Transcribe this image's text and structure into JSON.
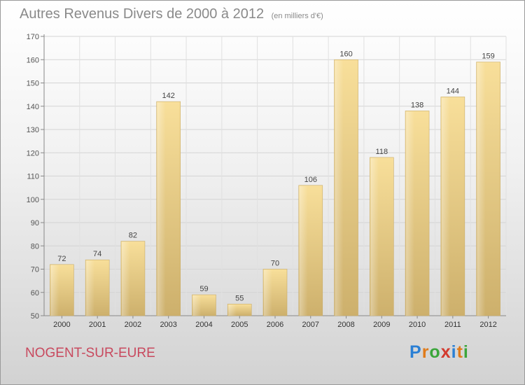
{
  "header": {
    "title": "Autres Revenus Divers de 2000 à 2012",
    "unit": "(en milliers d'€)"
  },
  "footer": {
    "city": "NOGENT-SUR-EURE",
    "logo_letters": [
      "P",
      "r",
      "o",
      "x",
      "i",
      "t",
      "i"
    ],
    "logo_colors": [
      "#2a7fd4",
      "#e07b1a",
      "#3aa63a",
      "#d33a2e",
      "#2a7fd4",
      "#e07b1a",
      "#3aa63a"
    ]
  },
  "chart_data": {
    "type": "bar",
    "title": "Autres Revenus Divers de 2000 à 2012",
    "xlabel": "",
    "ylabel": "",
    "categories": [
      "2000",
      "2001",
      "2002",
      "2003",
      "2004",
      "2005",
      "2006",
      "2007",
      "2008",
      "2009",
      "2010",
      "2011",
      "2012"
    ],
    "values": [
      72,
      74,
      82,
      142,
      59,
      55,
      70,
      106,
      160,
      118,
      138,
      144,
      159
    ],
    "ylim": [
      50,
      170
    ],
    "yticks": [
      50,
      60,
      70,
      80,
      90,
      100,
      110,
      120,
      130,
      140,
      150,
      160,
      170
    ],
    "grid": true,
    "bar_color": "#e6c781"
  }
}
